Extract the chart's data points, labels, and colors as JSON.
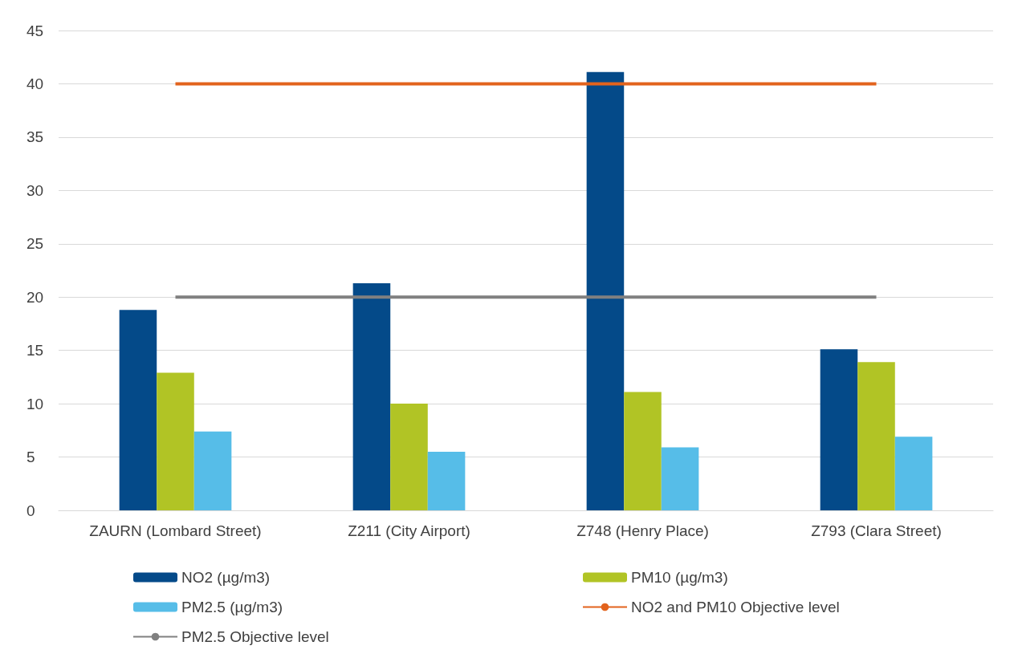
{
  "chart_data": {
    "type": "bar",
    "categories": [
      "ZAURN (Lombard Street)",
      "Z211 (City Airport)",
      "Z748 (Henry Place)",
      "Z793 (Clara Street)"
    ],
    "series": [
      {
        "name": "NO2 (µg/m3)",
        "color": "#044a89",
        "values": [
          18.8,
          21.3,
          41.1,
          15.1
        ]
      },
      {
        "name": "PM10 (µg/m3)",
        "color": "#b1c425",
        "values": [
          12.9,
          10.0,
          11.1,
          13.9
        ]
      },
      {
        "name": "PM2.5 (µg/m3)",
        "color": "#56bde8",
        "values": [
          7.4,
          5.5,
          5.9,
          6.9
        ]
      },
      {
        "name": "NO2 and PM10 Objective level",
        "type": "line",
        "color": "#e2631d",
        "values": [
          40,
          40,
          40,
          40
        ]
      },
      {
        "name": "PM2.5 Objective level",
        "type": "line",
        "color": "#808080",
        "values": [
          20,
          20,
          20,
          20
        ]
      }
    ],
    "ylim": [
      0,
      45
    ],
    "yticks": [
      0,
      5,
      10,
      15,
      20,
      25,
      30,
      35,
      40,
      45
    ],
    "grid": "y",
    "legend": "bottom",
    "marker": "none"
  }
}
